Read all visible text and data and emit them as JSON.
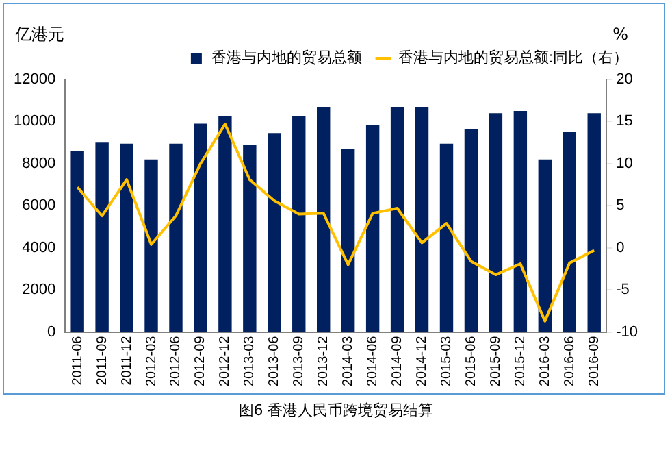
{
  "chart_data": {
    "type": "bar",
    "ylabel": "亿港元",
    "y2label": "%",
    "categories": [
      "2011-06",
      "2011-09",
      "2011-12",
      "2012-03",
      "2012-06",
      "2012-09",
      "2012-12",
      "2013-03",
      "2013-06",
      "2013-09",
      "2013-12",
      "2014-03",
      "2014-06",
      "2014-09",
      "2014-12",
      "2015-03",
      "2015-06",
      "2015-09",
      "2015-12",
      "2016-03",
      "2016-06",
      "2016-09"
    ],
    "series": [
      {
        "name": "香港与内地的贸易总额",
        "color": "#002060",
        "values": [
          8600,
          9000,
          8950,
          8200,
          8950,
          9900,
          10250,
          8900,
          9450,
          10250,
          10700,
          8700,
          9850,
          10700,
          10700,
          8950,
          9650,
          10400,
          10500,
          8200,
          9500,
          10400
        ]
      },
      {
        "name": "香港与内地的贸易总额:同比（右）",
        "type": "line",
        "axis": "y2",
        "color": "#ffc000",
        "values": [
          7.2,
          3.8,
          8.1,
          0.4,
          3.8,
          10,
          14.7,
          8.1,
          5.6,
          4.0,
          4.1,
          -2.0,
          4.1,
          4.7,
          0.6,
          2.9,
          -1.6,
          -3.2,
          -1.9,
          -8.7,
          -1.8,
          -0.3
        ]
      }
    ],
    "ylim": [
      0,
      12000
    ],
    "yticks": [
      0,
      2000,
      4000,
      6000,
      8000,
      10000,
      12000
    ],
    "y2lim": [
      -10,
      20
    ],
    "y2ticks": [
      -10,
      -5,
      0,
      5,
      10,
      15,
      20
    ],
    "grid": false,
    "legend": "top",
    "marker": "none",
    "line_style": "solid",
    "annotations": [
      "图6 香港人民币跨境贸易结算"
    ]
  }
}
